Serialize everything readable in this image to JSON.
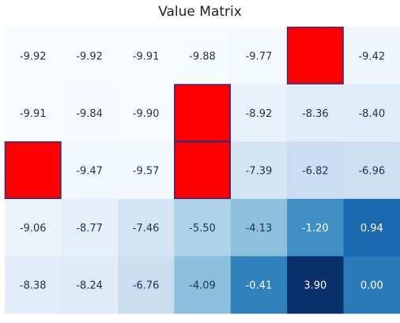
{
  "chart_data": {
    "type": "heatmap",
    "title": "Value Matrix",
    "rows": 5,
    "cols": 7,
    "grid": false,
    "values": [
      [
        -9.92,
        -9.92,
        -9.91,
        -9.88,
        -9.77,
        null,
        -9.42
      ],
      [
        -9.91,
        -9.84,
        -9.9,
        null,
        -8.92,
        -8.36,
        -8.4
      ],
      [
        null,
        -9.47,
        -9.57,
        null,
        -7.39,
        -6.82,
        -6.96
      ],
      [
        -9.06,
        -8.77,
        -7.46,
        -5.5,
        -4.13,
        -1.2,
        0.94
      ],
      [
        -8.38,
        -8.24,
        -6.76,
        -4.09,
        -0.41,
        3.9,
        0.0
      ]
    ],
    "labels": [
      [
        "-9.92",
        "-9.92",
        "-9.91",
        "-9.88",
        "-9.77",
        "",
        "-9.42"
      ],
      [
        "-9.91",
        "-9.84",
        "-9.90",
        "",
        "-8.92",
        "-8.36",
        "-8.40"
      ],
      [
        "",
        "-9.47",
        "-9.57",
        "",
        "-7.39",
        "-6.82",
        "-6.96"
      ],
      [
        "-9.06",
        "-8.77",
        "-7.46",
        "-5.50",
        "-4.13",
        "-1.20",
        "0.94"
      ],
      [
        "-8.38",
        "-8.24",
        "-6.76",
        "-4.09",
        "-0.41",
        "3.90",
        "0.00"
      ]
    ],
    "obstacle_cells": [
      [
        0,
        5
      ],
      [
        1,
        3
      ],
      [
        2,
        0
      ],
      [
        2,
        3
      ]
    ],
    "colormap": "blues",
    "colors": {
      "obstacle_fill": "#ff0000",
      "obstacle_edge": "#2b2f7a",
      "light_text": "#ffffff",
      "dark_text": "#1b3158",
      "low": "#f7fbff",
      "high": "#08306b"
    }
  }
}
